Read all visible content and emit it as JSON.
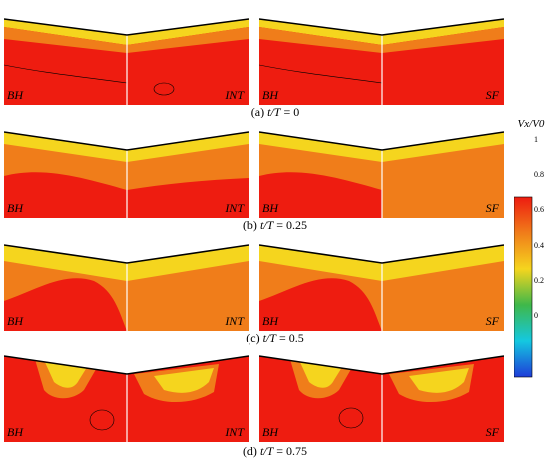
{
  "rows": [
    {
      "caption_prefix": "(a) ",
      "caption_var": "t/T",
      "caption_value": " = 0",
      "panels": [
        {
          "left_label": "BH",
          "right_label": "INT"
        },
        {
          "left_label": "BH",
          "right_label": "SF"
        }
      ]
    },
    {
      "caption_prefix": "(b) ",
      "caption_var": "t/T",
      "caption_value": " = 0.25",
      "panels": [
        {
          "left_label": "BH",
          "right_label": "INT"
        },
        {
          "left_label": "BH",
          "right_label": "SF"
        }
      ]
    },
    {
      "caption_prefix": "(c) ",
      "caption_var": "t/T",
      "caption_value": " = 0.5",
      "panels": [
        {
          "left_label": "BH",
          "right_label": "INT"
        },
        {
          "left_label": "BH",
          "right_label": "SF"
        }
      ]
    },
    {
      "caption_prefix": "(d) ",
      "caption_var": "t/T",
      "caption_value": " = 0.75",
      "panels": [
        {
          "left_label": "BH",
          "right_label": "INT"
        },
        {
          "left_label": "BH",
          "right_label": "SF"
        }
      ]
    }
  ],
  "colorbar": {
    "title": "Vx/V0",
    "ticks": [
      "1",
      "0.8",
      "0.6",
      "0.4",
      "0.2",
      "0"
    ],
    "colors": {
      "red": "#ee1c10",
      "orange": "#f07d1a",
      "yellow": "#f5d51e",
      "green": "#3fb84a",
      "cyan": "#14c8e0",
      "blue": "#1e3cd8"
    }
  }
}
